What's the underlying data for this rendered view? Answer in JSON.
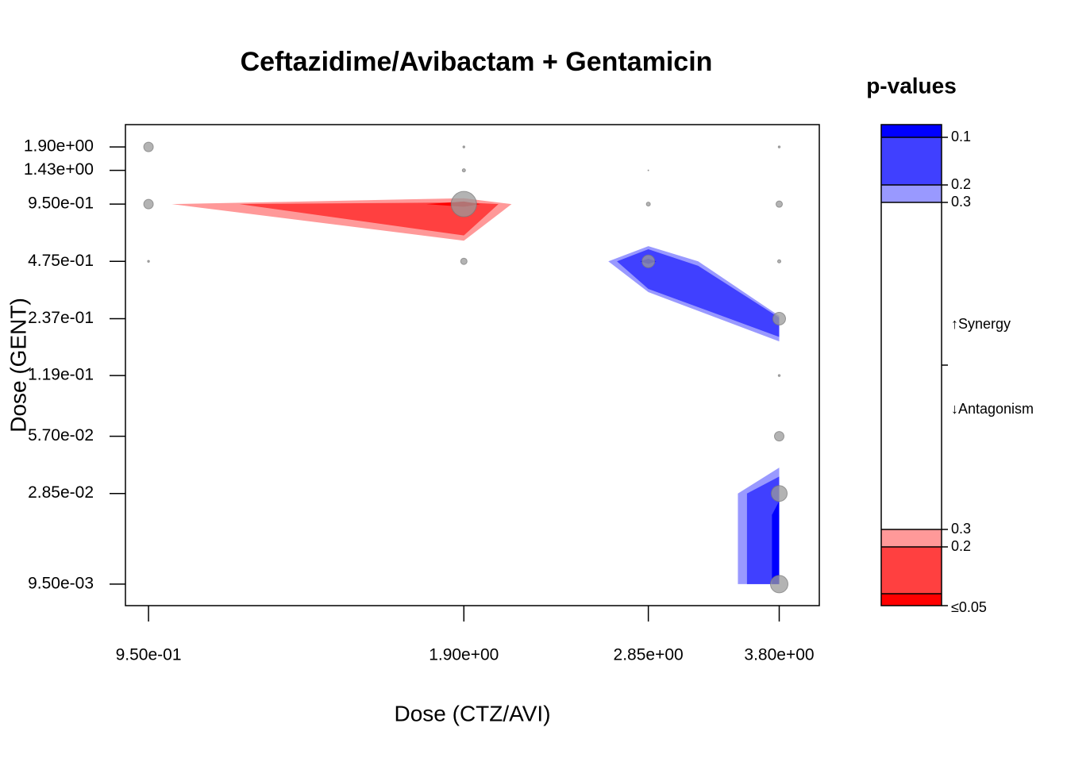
{
  "chart_data": {
    "type": "bubble",
    "title": "Ceftazidime/Avibactam + Gentamicin",
    "x_label": "Dose (CTZ/AVI)",
    "y_label": "Dose (GENT)",
    "log_x": true,
    "log_y": true,
    "xlim": [
      0.903,
      4.15
    ],
    "ylim": [
      0.00732,
      2.49
    ],
    "xticks": [
      {
        "value": 0.95,
        "label": "9.50e-01"
      },
      {
        "value": 1.9,
        "label": "1.90e+00"
      },
      {
        "value": 2.85,
        "label": "2.85e+00"
      },
      {
        "value": 3.8,
        "label": "3.80e+00"
      }
    ],
    "yticks": [
      {
        "value": 1.9,
        "label": "1.90e+00"
      },
      {
        "value": 1.43,
        "label": "1.43e+00"
      },
      {
        "value": 0.95,
        "label": "9.50e-01"
      },
      {
        "value": 0.475,
        "label": "4.75e-01"
      },
      {
        "value": 0.237,
        "label": "2.37e-01"
      },
      {
        "value": 0.119,
        "label": "1.19e-01"
      },
      {
        "value": 0.057,
        "label": "5.70e-02"
      },
      {
        "value": 0.0285,
        "label": "2.85e-02"
      },
      {
        "value": 0.0095,
        "label": "9.50e-03"
      }
    ],
    "regions": [
      {
        "color": "#ff9999",
        "x": [
          1.0,
          1.9,
          2.11,
          1.9
        ],
        "y": [
          0.95,
          1.02,
          0.95,
          0.61
        ]
      },
      {
        "color": "#ff4040",
        "x": [
          1.16,
          1.9,
          2.05,
          1.9
        ],
        "y": [
          0.95,
          0.97,
          0.95,
          0.65
        ]
      },
      {
        "color": "#ff0000",
        "x": [
          1.75,
          1.9,
          1.97,
          1.9
        ],
        "y": [
          0.95,
          0.98,
          0.95,
          0.92
        ]
      },
      {
        "color": "#9999ff",
        "x": [
          2.61,
          2.85,
          3.18,
          3.8,
          3.8,
          2.85
        ],
        "y": [
          0.475,
          0.571,
          0.475,
          0.245,
          0.18,
          0.327
        ]
      },
      {
        "color": "#4040ff",
        "x": [
          2.66,
          2.85,
          3.18,
          3.8,
          3.8,
          2.85
        ],
        "y": [
          0.475,
          0.55,
          0.45,
          0.24,
          0.19,
          0.34
        ]
      },
      {
        "color": "#0000ff",
        "x": [
          2.8,
          2.85,
          2.9,
          2.85
        ],
        "y": [
          0.475,
          0.49,
          0.475,
          0.46
        ]
      },
      {
        "color": "#9999ff",
        "x": [
          3.47,
          3.8,
          3.8,
          3.47
        ],
        "y": [
          0.0285,
          0.039,
          0.0095,
          0.0095
        ]
      },
      {
        "color": "#4040ff",
        "x": [
          3.54,
          3.8,
          3.8,
          3.54
        ],
        "y": [
          0.0285,
          0.035,
          0.0095,
          0.0095
        ]
      },
      {
        "color": "#0000ff",
        "x": [
          3.74,
          3.8,
          3.8,
          3.74
        ],
        "y": [
          0.022,
          0.026,
          0.0095,
          0.0095
        ]
      }
    ],
    "points": {
      "color": "#999999",
      "x": [
        0.95,
        0.95,
        0.95,
        1.9,
        1.9,
        1.9,
        1.9,
        2.85,
        2.85,
        2.85,
        3.8,
        3.8,
        3.8,
        3.8,
        3.8,
        3.8,
        3.8,
        3.8
      ],
      "y": [
        1.9,
        0.95,
        0.475,
        1.9,
        1.43,
        0.95,
        0.475,
        1.43,
        0.95,
        0.475,
        1.9,
        0.95,
        0.475,
        0.237,
        0.119,
        0.057,
        0.0285,
        0.0095
      ],
      "size": [
        6,
        6,
        1.2,
        1.2,
        2,
        16,
        4,
        0.5,
        2.5,
        8,
        1.2,
        4,
        2,
        8,
        1.2,
        6,
        10,
        11
      ]
    },
    "pvalue_legend": {
      "title": "p-values",
      "synergy_label": "↑Synergy",
      "antagonism_label": "↓Antagonism",
      "synergy_colors": [
        "#0000ff",
        "#4040ff",
        "#9999ff"
      ],
      "synergy_ticks": [
        "0.1",
        "0.2",
        "0.3"
      ],
      "antagonism_colors": [
        "#ff9999",
        "#ff4040",
        "#ff0000"
      ],
      "antagonism_ticks": [
        "0.3",
        "0.2",
        "≤0.05"
      ]
    }
  }
}
